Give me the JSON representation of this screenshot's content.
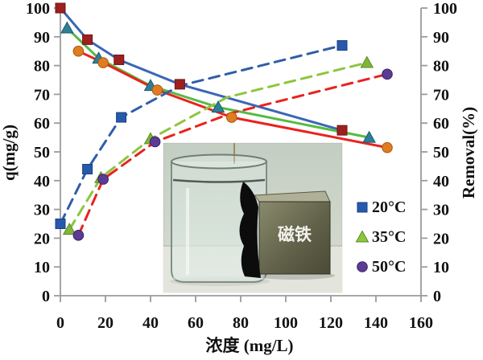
{
  "chart_data": {
    "type": "line",
    "title": "",
    "x_axis": {
      "label": "浓度 (mg/L)",
      "min": 0,
      "max": 160,
      "tick_step": 20,
      "ticks": [
        "0",
        "20",
        "40",
        "60",
        "80",
        "100",
        "120",
        "140",
        "160"
      ]
    },
    "y_left_axis": {
      "label": "q(mg/g)",
      "min": 0,
      "max": 100,
      "tick_step": 10,
      "ticks": [
        "0",
        "10",
        "20",
        "30",
        "40",
        "50",
        "60",
        "70",
        "80",
        "90",
        "100"
      ]
    },
    "y_right_axis": {
      "label": "Removal(%)",
      "min": 0,
      "max": 100,
      "tick_step": 10,
      "ticks": [
        "0",
        "10",
        "20",
        "30",
        "40",
        "50",
        "60",
        "70",
        "80",
        "90",
        "100"
      ]
    },
    "grid": false,
    "legend_position": "inside-right",
    "series": [
      {
        "name": "removal-20C",
        "axis": "right",
        "style": "solid",
        "line_color": "#3A67B5",
        "marker": "square",
        "marker_color": "#9E1F1F",
        "marker_stroke": "#6E1414",
        "points": [
          [
            0,
            100
          ],
          [
            12,
            89
          ],
          [
            26,
            82
          ],
          [
            53,
            73.5
          ],
          [
            125,
            57.5
          ]
        ],
        "no_marker_at": []
      },
      {
        "name": "removal-35C",
        "axis": "right",
        "style": "solid",
        "line_color": "#55BB44",
        "marker": "triangle",
        "marker_color": "#2D7F96",
        "marker_stroke": "#1E5A6B",
        "points": [
          [
            3,
            93
          ],
          [
            17,
            82.5
          ],
          [
            40,
            73
          ],
          [
            70,
            65.5
          ],
          [
            137,
            55
          ]
        ],
        "no_marker_at": []
      },
      {
        "name": "removal-50C",
        "axis": "right",
        "style": "solid",
        "line_color": "#E8231E",
        "marker": "circle",
        "marker_color": "#E07D20",
        "marker_stroke": "#A85810",
        "points": [
          [
            8,
            85
          ],
          [
            19,
            81
          ],
          [
            43,
            71.5
          ],
          [
            76,
            62
          ],
          [
            145,
            51.5
          ]
        ],
        "no_marker_at": []
      },
      {
        "name": "q-20C",
        "axis": "left",
        "style": "dashed",
        "line_color": "#2F5EA8",
        "marker": "square",
        "marker_color": "#2659AC",
        "marker_stroke": "#1B3F7E",
        "points": [
          [
            0,
            25
          ],
          [
            12,
            44
          ],
          [
            27,
            62
          ],
          [
            53,
            73
          ],
          [
            125,
            87
          ]
        ],
        "no_marker_at": [
          3
        ]
      },
      {
        "name": "q-35C",
        "axis": "left",
        "style": "dashed",
        "line_color": "#8CC63F",
        "marker": "triangle",
        "marker_color": "#7FB63A",
        "marker_stroke": "#5C8A24",
        "points": [
          [
            4,
            23
          ],
          [
            18,
            41
          ],
          [
            40,
            54.5
          ],
          [
            74,
            69
          ],
          [
            136,
            81
          ]
        ],
        "no_marker_at": [
          3
        ]
      },
      {
        "name": "q-50C",
        "axis": "left",
        "style": "dashed",
        "line_color": "#E8231E",
        "marker": "circle",
        "marker_color": "#5C3B94",
        "marker_stroke": "#3A2363",
        "points": [
          [
            8,
            21
          ],
          [
            19,
            40.5
          ],
          [
            42,
            53.5
          ],
          [
            76,
            63.5
          ],
          [
            145,
            77
          ]
        ],
        "no_marker_at": [
          3
        ]
      }
    ],
    "legend": [
      {
        "label": "20°C",
        "marker": "square",
        "color": "#2659AC",
        "stroke": "#1B3F7E"
      },
      {
        "label": "35°C",
        "marker": "triangle",
        "color": "#8CC63F",
        "stroke": "#5C8A24"
      },
      {
        "label": "50°C",
        "marker": "circle",
        "color": "#5C3B94",
        "stroke": "#3A2363"
      }
    ],
    "inset_photo": {
      "description": "beaker of clear water with black magnetic adsorbent pulled to a magnet block",
      "magnet_label": "磁铁"
    },
    "colors": {
      "axis": "#9B9B9B",
      "text": "#111111"
    }
  }
}
